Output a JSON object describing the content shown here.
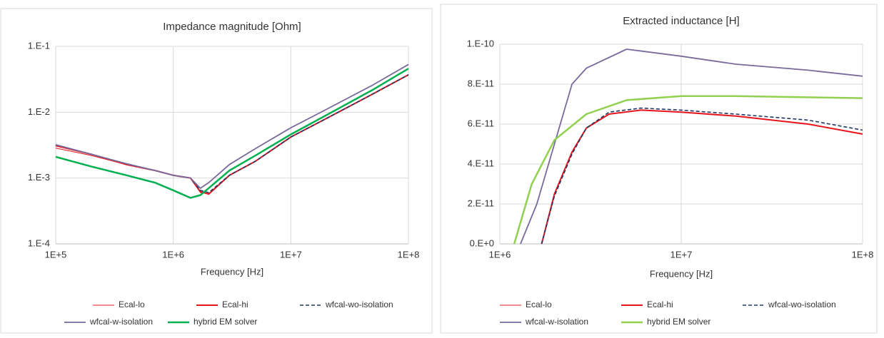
{
  "chart_data": [
    {
      "type": "line",
      "title": "Impedance magnitude [Ohm]",
      "x_label": "Frequency [Hz]",
      "xscale": "log",
      "yscale": "log",
      "grid": true,
      "xlim": [
        100000,
        100000000
      ],
      "ylim": [
        0.0001,
        0.1
      ],
      "xticks": [
        {
          "value": 100000,
          "label": "1E+5"
        },
        {
          "value": 1000000,
          "label": "1E+6"
        },
        {
          "value": 10000000,
          "label": "1E+7"
        },
        {
          "value": 100000000,
          "label": "1E+8"
        }
      ],
      "yticks": [
        {
          "value": 0.0001,
          "label": "1.E-4"
        },
        {
          "value": 0.001,
          "label": "1.E-3"
        },
        {
          "value": 0.01,
          "label": "1.E-2"
        },
        {
          "value": 0.1,
          "label": "1.E-1"
        }
      ],
      "series": [
        {
          "name": "Ecal-lo",
          "color": "#e8141b",
          "width": 1,
          "x": [
            100000,
            200000,
            400000,
            700000,
            1000000,
            1400000,
            1700000,
            2000000,
            3000000,
            5000000,
            10000000,
            20000000,
            50000000,
            100000000
          ],
          "values": [
            0.00285,
            0.0022,
            0.0016,
            0.0013,
            0.0011,
            0.001,
            0.0006,
            0.00058,
            0.0011,
            0.0018,
            0.0042,
            0.008,
            0.019,
            0.037
          ]
        },
        {
          "name": "Ecal-hi",
          "color": "#e8141b",
          "width": 2,
          "x": [
            100000,
            200000,
            400000,
            700000,
            1000000,
            1400000,
            1700000,
            2000000,
            3000000,
            5000000,
            10000000,
            20000000,
            50000000,
            100000000
          ],
          "values": [
            0.0031,
            0.0023,
            0.0016,
            0.0013,
            0.0011,
            0.001,
            0.00062,
            0.00057,
            0.0011,
            0.0018,
            0.0042,
            0.008,
            0.019,
            0.037
          ]
        },
        {
          "name": "wfcal-wo-isolation",
          "color": "#1f3864",
          "width": 1.6,
          "dashed": true,
          "x": [
            100000,
            200000,
            400000,
            700000,
            1000000,
            1400000,
            1700000,
            2000000,
            3000000,
            5000000,
            10000000,
            20000000,
            50000000,
            100000000
          ],
          "values": [
            0.0032,
            0.0023,
            0.00165,
            0.0013,
            0.0011,
            0.001,
            0.00065,
            0.0006,
            0.0011,
            0.0018,
            0.0042,
            0.008,
            0.019,
            0.037
          ]
        },
        {
          "name": "wfcal-w-isolation",
          "color": "#7a6a9c",
          "width": 1.8,
          "x": [
            100000,
            200000,
            400000,
            700000,
            1000000,
            1400000,
            1700000,
            2000000,
            3000000,
            5000000,
            10000000,
            20000000,
            50000000,
            100000000
          ],
          "values": [
            0.0032,
            0.0023,
            0.00165,
            0.0013,
            0.0011,
            0.001,
            0.0007,
            0.00085,
            0.0016,
            0.0028,
            0.0058,
            0.011,
            0.026,
            0.053
          ]
        },
        {
          "name": "hybrid EM solver",
          "color": "#00b050",
          "width": 2.5,
          "x": [
            100000,
            200000,
            400000,
            700000,
            1000000,
            1400000,
            1700000,
            2000000,
            3000000,
            5000000,
            10000000,
            20000000,
            50000000,
            100000000
          ],
          "values": [
            0.0021,
            0.0015,
            0.0011,
            0.00085,
            0.00065,
            0.0005,
            0.00055,
            0.0007,
            0.0013,
            0.0022,
            0.0046,
            0.009,
            0.022,
            0.046
          ]
        }
      ]
    },
    {
      "type": "line",
      "title": "Extracted inductance [H]",
      "x_label": "Frequency [Hz]",
      "xscale": "log",
      "yscale": "linear",
      "grid": true,
      "xlim": [
        1000000,
        100000000
      ],
      "ylim": [
        0,
        1e-10
      ],
      "xticks": [
        {
          "value": 1000000,
          "label": "1E+6"
        },
        {
          "value": 10000000,
          "label": "1E+7"
        },
        {
          "value": 100000000,
          "label": "1E+8"
        }
      ],
      "yticks": [
        {
          "value": 0,
          "label": "0.E+0"
        },
        {
          "value": 2e-11,
          "label": "2.E-11"
        },
        {
          "value": 4e-11,
          "label": "4.E-11"
        },
        {
          "value": 6e-11,
          "label": "6.E-11"
        },
        {
          "value": 8e-11,
          "label": "8.E-11"
        },
        {
          "value": 1e-10,
          "label": "1.E-10"
        }
      ],
      "series": [
        {
          "name": "Ecal-lo",
          "color": "#e8141b",
          "width": 1,
          "x": [
            1700000,
            2000000,
            2500000,
            3000000,
            4000000,
            6000000,
            10000000,
            20000000,
            50000000,
            100000000
          ],
          "values": [
            0,
            2.5e-11,
            4.6e-11,
            5.8e-11,
            6.5e-11,
            6.7e-11,
            6.6e-11,
            6.4e-11,
            6e-11,
            5.5e-11
          ]
        },
        {
          "name": "Ecal-hi",
          "color": "#e8141b",
          "width": 2,
          "x": [
            1700000,
            2000000,
            2500000,
            3000000,
            4000000,
            6000000,
            10000000,
            20000000,
            50000000,
            100000000
          ],
          "values": [
            0,
            2.5e-11,
            4.6e-11,
            5.8e-11,
            6.5e-11,
            6.7e-11,
            6.6e-11,
            6.4e-11,
            6e-11,
            5.5e-11
          ]
        },
        {
          "name": "wfcal-wo-isolation",
          "color": "#1f3864",
          "width": 1.6,
          "dashed": true,
          "x": [
            1700000,
            2000000,
            2500000,
            3000000,
            4000000,
            6000000,
            10000000,
            20000000,
            50000000,
            100000000
          ],
          "values": [
            0,
            2.4e-11,
            4.5e-11,
            5.8e-11,
            6.6e-11,
            6.8e-11,
            6.7e-11,
            6.5e-11,
            6.2e-11,
            5.7e-11
          ]
        },
        {
          "name": "wfcal-w-isolation",
          "color": "#7a6a9c",
          "width": 1.8,
          "x": [
            1300000,
            1600000,
            2000000,
            2500000,
            3000000,
            5000000,
            10000000,
            20000000,
            50000000,
            100000000
          ],
          "values": [
            0,
            2e-11,
            5e-11,
            8e-11,
            8.8e-11,
            9.75e-11,
            9.4e-11,
            9e-11,
            8.7e-11,
            8.4e-11
          ]
        },
        {
          "name": "hybrid EM solver",
          "color": "#92d050",
          "width": 2.5,
          "x": [
            1200000,
            1500000,
            2000000,
            3000000,
            5000000,
            10000000,
            20000000,
            100000000
          ],
          "values": [
            0,
            3e-11,
            5.2e-11,
            6.5e-11,
            7.2e-11,
            7.4e-11,
            7.4e-11,
            7.3e-11
          ]
        }
      ]
    }
  ]
}
